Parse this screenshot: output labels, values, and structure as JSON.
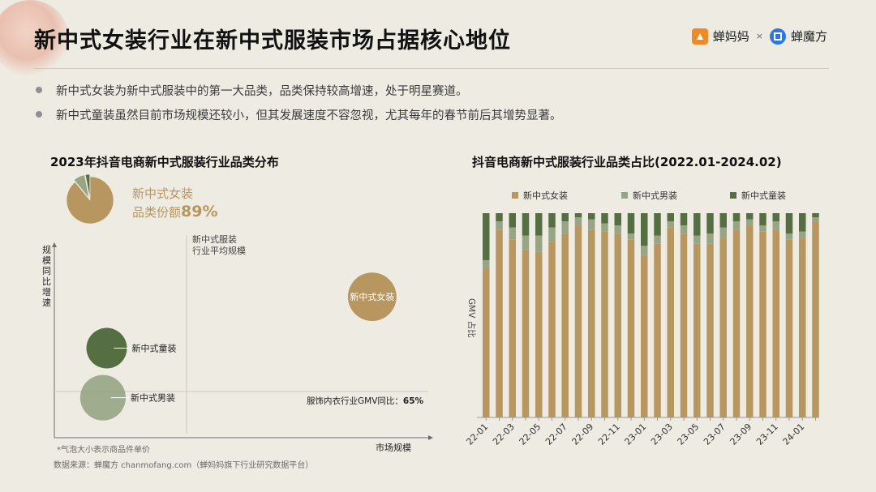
{
  "header": {
    "title": "新中式女装行业在新中式服装市场占据核心地位",
    "brand1": "蝉妈妈",
    "brand_sep": "×",
    "brand2": "蝉魔方"
  },
  "bullets": [
    "新中式女装为新中式服装中的第一大品类，品类保持较高增速，处于明星赛道。",
    "新中式童装虽然目前市场规模还较小，但其发展速度不容忽视，尤其每年的春节前后其增势显著。"
  ],
  "colors": {
    "womens": "#b8965f",
    "mens": "#97a585",
    "kids": "#566f42",
    "title_accent": "#b8965f"
  },
  "chart_data": [
    {
      "type": "pie+bubble",
      "title": "2023年抖音电商新中式服装行业品类分布",
      "pie": {
        "slices": [
          {
            "name": "新中式女装",
            "value": 89
          },
          {
            "name": "新中式男装",
            "value": 8
          },
          {
            "name": "新中式童装",
            "value": 3
          }
        ],
        "label_line1": "新中式女装",
        "label_line2_prefix": "品类份额",
        "label_line2_value": "89%"
      },
      "bubble": {
        "xlabel": "市场规模",
        "ylabel": "规模同比增速",
        "avg_label_line1": "新中式服装",
        "avg_label_line2": "行业平均规模",
        "ref_label": "服饰内衣行业GMV同比：",
        "ref_value": "65%",
        "size_note": "*气泡大小表示商品件单价",
        "points": [
          {
            "name": "新中式女装",
            "x": 0.85,
            "y": 0.74,
            "size": 0.85,
            "label_inside": true
          },
          {
            "name": "新中式童装",
            "x": 0.14,
            "y": 0.47,
            "size": 0.5,
            "label_inside": false
          },
          {
            "name": "新中式男装",
            "x": 0.13,
            "y": 0.21,
            "size": 0.72,
            "label_inside": false
          }
        ]
      },
      "source": "数据来源：蝉魔方 chanmofang.com（蝉妈妈旗下行业研究数据平台）"
    },
    {
      "type": "stacked-bar",
      "title": "抖音电商新中式服装行业品类占比(2022.01-2024.02)",
      "ylabel": "GMV 占比",
      "ylim": [
        0,
        1
      ],
      "legend": [
        "新中式女装",
        "新中式男装",
        "新中式童装"
      ],
      "categories": [
        "22-01",
        "22-02",
        "22-03",
        "22-04",
        "22-05",
        "22-06",
        "22-07",
        "22-08",
        "22-09",
        "22-10",
        "22-11",
        "22-12",
        "23-01",
        "23-02",
        "23-03",
        "23-04",
        "23-05",
        "23-06",
        "23-07",
        "23-08",
        "23-09",
        "23-10",
        "23-11",
        "23-12",
        "24-01",
        "24-02"
      ],
      "tick_labels": [
        "22-01",
        "22-03",
        "22-05",
        "22-07",
        "22-09",
        "22-11",
        "23-01",
        "23-03",
        "23-05",
        "23-07",
        "23-09",
        "23-11",
        "24-01"
      ],
      "series": [
        {
          "name": "新中式女装",
          "values": [
            0.73,
            0.92,
            0.87,
            0.82,
            0.81,
            0.86,
            0.9,
            0.94,
            0.92,
            0.91,
            0.9,
            0.87,
            0.79,
            0.85,
            0.93,
            0.9,
            0.85,
            0.85,
            0.88,
            0.92,
            0.94,
            0.91,
            0.92,
            0.87,
            0.88,
            0.96
          ]
        },
        {
          "name": "新中式男装",
          "values": [
            0.04,
            0.04,
            0.06,
            0.07,
            0.08,
            0.07,
            0.06,
            0.04,
            0.05,
            0.04,
            0.04,
            0.03,
            0.05,
            0.04,
            0.03,
            0.04,
            0.04,
            0.05,
            0.05,
            0.04,
            0.03,
            0.03,
            0.04,
            0.03,
            0.03,
            0.02
          ]
        },
        {
          "name": "新中式童装",
          "values": [
            0.23,
            0.04,
            0.07,
            0.11,
            0.11,
            0.07,
            0.04,
            0.02,
            0.03,
            0.05,
            0.06,
            0.1,
            0.16,
            0.11,
            0.04,
            0.06,
            0.11,
            0.1,
            0.07,
            0.04,
            0.03,
            0.06,
            0.04,
            0.1,
            0.09,
            0.02
          ]
        }
      ]
    }
  ]
}
